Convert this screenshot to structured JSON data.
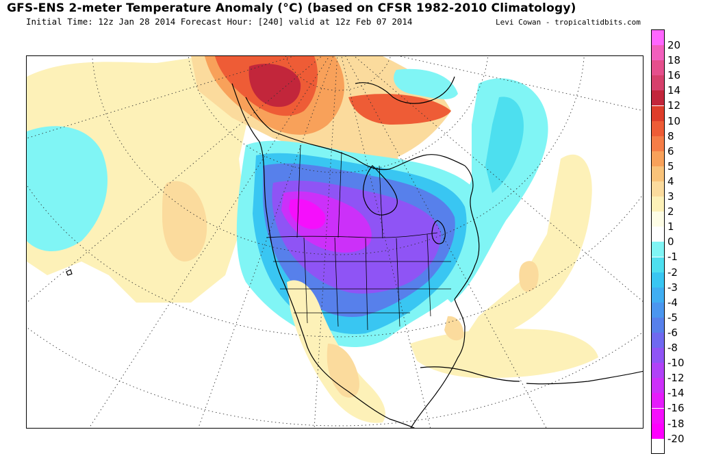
{
  "header": {
    "title": "GFS-ENS 2-meter Temperature Anomaly (°C) (based on CFSR 1982-2010 Climatology)",
    "subtitle": "Initial Time: 12z Jan 28 2014 Forecast Hour: [240] valid at 12z Feb 07 2014",
    "credit": "Levi Cowan - tropicaltidbits.com"
  },
  "colorbar": {
    "levels": [
      {
        "label": "20",
        "color": "#ff66ff"
      },
      {
        "label": "18",
        "color": "#f25fbd"
      },
      {
        "label": "16",
        "color": "#e54f8c"
      },
      {
        "label": "14",
        "color": "#d6406b"
      },
      {
        "label": "12",
        "color": "#c2263b"
      },
      {
        "label": "10",
        "color": "#de3d2a"
      },
      {
        "label": "8",
        "color": "#ee5c36"
      },
      {
        "label": "6",
        "color": "#f57d47"
      },
      {
        "label": "5",
        "color": "#f8a15a"
      },
      {
        "label": "4",
        "color": "#f9c37a"
      },
      {
        "label": "3",
        "color": "#fbdb9d"
      },
      {
        "label": "2",
        "color": "#fdf1b8"
      },
      {
        "label": "1",
        "color": "#fefde6"
      },
      {
        "label": "0",
        "color": "#ffffff"
      },
      {
        "label": "-1",
        "color": "#80f5f5"
      },
      {
        "label": "-2",
        "color": "#4ddfef"
      },
      {
        "label": "-3",
        "color": "#39c6f2"
      },
      {
        "label": "-4",
        "color": "#40aef2"
      },
      {
        "label": "-5",
        "color": "#4b96ef"
      },
      {
        "label": "-6",
        "color": "#5780eb"
      },
      {
        "label": "-8",
        "color": "#6f69f0"
      },
      {
        "label": "-10",
        "color": "#8f54f5"
      },
      {
        "label": "-12",
        "color": "#b042f7"
      },
      {
        "label": "-14",
        "color": "#cc30f9"
      },
      {
        "label": "-16",
        "color": "#e51cfb"
      },
      {
        "label": "-18",
        "color": "#f50ffc"
      },
      {
        "label": "-20",
        "color": "#ff00ff"
      }
    ]
  }
}
